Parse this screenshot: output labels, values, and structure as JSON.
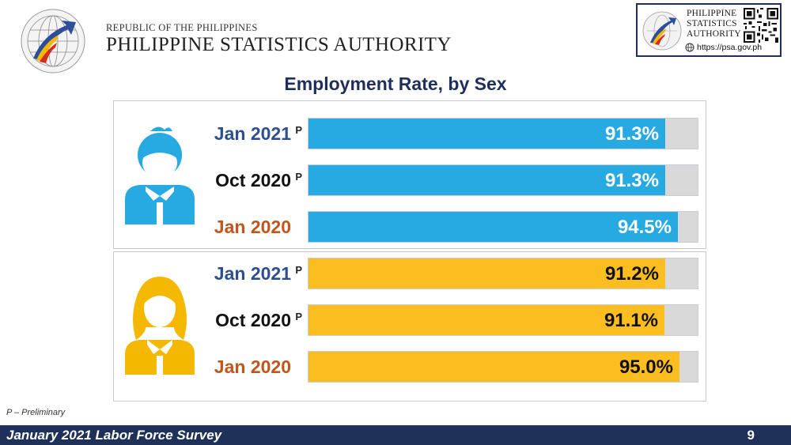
{
  "header": {
    "republic": "REPUBLIC OF THE PHILIPPINES",
    "agency": "PHILIPPINE STATISTICS AUTHORITY",
    "badge_line1": "PHILIPPINE",
    "badge_line2": "STATISTICS",
    "badge_line3": "AUTHORITY",
    "badge_url": "https://psa.gov.ph",
    "logo_ring_text": "PHILIPPINE STATISTICS AUTHORITY",
    "logo_motto": "Solid · Responsive · World-class"
  },
  "colors": {
    "male_bar": "#27aae1",
    "female_bar": "#fbbd1f",
    "track": "#d9d9d9",
    "jan2021_label": "#2d4f8e",
    "oct2020_label": "#111111",
    "jan2020_label": "#c0561b",
    "title": "#1f2e5c",
    "footer_bg": "#1f3158"
  },
  "chart_data": {
    "type": "bar",
    "orientation": "horizontal",
    "title": "Employment Rate, by Sex",
    "xlim": [
      0,
      100
    ],
    "groups": [
      {
        "icon": "male-person-icon",
        "rows": [
          {
            "label": "Jan 2021",
            "sup": "P",
            "value": 91.3,
            "display": "91.3%"
          },
          {
            "label": "Oct 2020",
            "sup": "P",
            "value": 91.3,
            "display": "91.3%"
          },
          {
            "label": "Jan 2020",
            "sup": "",
            "value": 94.5,
            "display": "94.5%"
          }
        ]
      },
      {
        "icon": "female-person-icon",
        "rows": [
          {
            "label": "Jan 2021",
            "sup": "P",
            "value": 91.2,
            "display": "91.2%"
          },
          {
            "label": "Oct 2020",
            "sup": "P",
            "value": 91.1,
            "display": "91.1%"
          },
          {
            "label": "Jan 2020",
            "sup": "",
            "value": 95.0,
            "display": "95.0%"
          }
        ]
      }
    ]
  },
  "footnote": "P – Preliminary",
  "footer": {
    "title": "January 2021 Labor Force Survey",
    "page": "9"
  }
}
